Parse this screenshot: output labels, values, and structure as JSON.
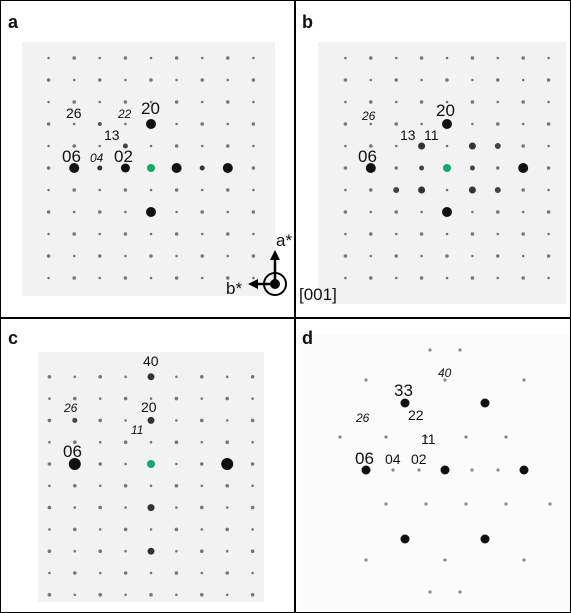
{
  "panels": [
    {
      "label": "a",
      "spots": [
        "26",
        "22",
        "20",
        "13",
        "06",
        "04",
        "02"
      ],
      "axes": {
        "a": "a*",
        "b": "b*",
        "zone": "[001]"
      }
    },
    {
      "label": "b",
      "spots": [
        "26",
        "20",
        "13",
        "11",
        "06"
      ]
    },
    {
      "label": "c",
      "spots": [
        "40",
        "26",
        "20",
        "11",
        "06"
      ]
    },
    {
      "label": "d",
      "spots": [
        "40",
        "33",
        "26",
        "22",
        "11",
        "06",
        "04",
        "02"
      ]
    }
  ]
}
